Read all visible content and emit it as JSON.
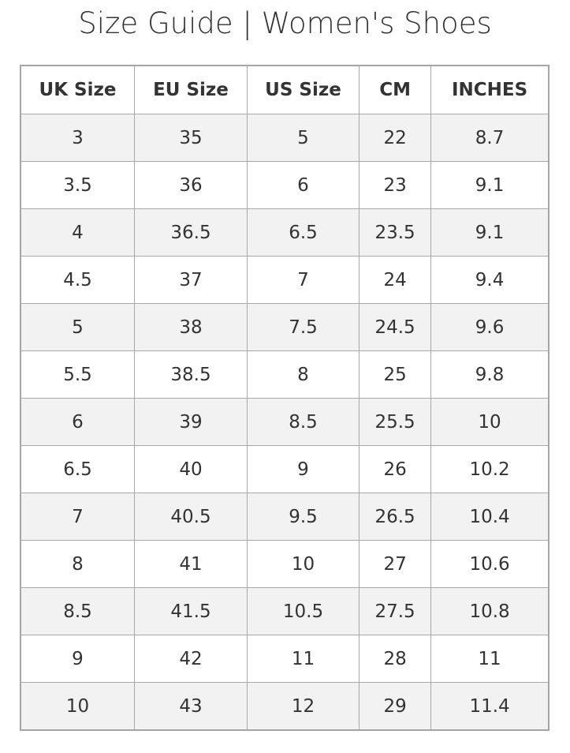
{
  "title": "Size Guide | Women's Shoes",
  "table": {
    "headers": [
      "UK Size",
      "EU Size",
      "US Size",
      "CM",
      "INCHES"
    ],
    "rows": [
      [
        "3",
        "35",
        "5",
        "22",
        "8.7"
      ],
      [
        "3.5",
        "36",
        "6",
        "23",
        "9.1"
      ],
      [
        "4",
        "36.5",
        "6.5",
        "23.5",
        "9.1"
      ],
      [
        "4.5",
        "37",
        "7",
        "24",
        "9.4"
      ],
      [
        "5",
        "38",
        "7.5",
        "24.5",
        "9.6"
      ],
      [
        "5.5",
        "38.5",
        "8",
        "25",
        "9.8"
      ],
      [
        "6",
        "39",
        "8.5",
        "25.5",
        "10"
      ],
      [
        "6.5",
        "40",
        "9",
        "26",
        "10.2"
      ],
      [
        "7",
        "40.5",
        "9.5",
        "26.5",
        "10.4"
      ],
      [
        "8",
        "41",
        "10",
        "27",
        "10.6"
      ],
      [
        "8.5",
        "41.5",
        "10.5",
        "27.5",
        "10.8"
      ],
      [
        "9",
        "42",
        "11",
        "28",
        "11"
      ],
      [
        "10",
        "43",
        "12",
        "29",
        "11.4"
      ]
    ]
  },
  "colors": {
    "stripe": "#f2f2f2",
    "border": "#a5a5a5",
    "text": "#333333"
  }
}
